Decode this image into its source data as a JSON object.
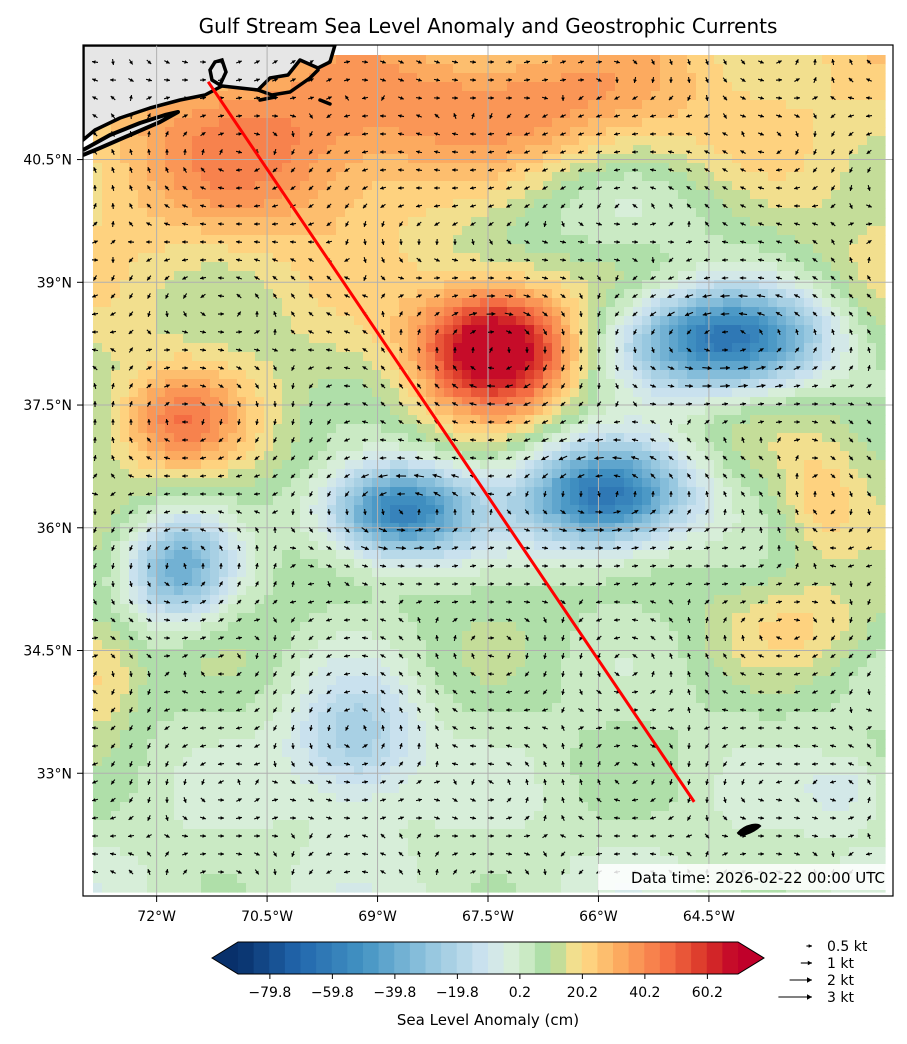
{
  "chart_data": {
    "type": "heatmap",
    "title": "Gulf Stream Sea Level Anomaly and Geostrophic Currents",
    "x_ticks": [
      {
        "lon": -72.0,
        "label": "72°W"
      },
      {
        "lon": -70.5,
        "label": "70.5°W"
      },
      {
        "lon": -69.0,
        "label": "69°W"
      },
      {
        "lon": -67.5,
        "label": "67.5°W"
      },
      {
        "lon": -66.0,
        "label": "66°W"
      },
      {
        "lon": -64.5,
        "label": "64.5°W"
      }
    ],
    "y_ticks": [
      {
        "lat": 40.5,
        "label": "40.5°N"
      },
      {
        "lat": 39.0,
        "label": "39°N"
      },
      {
        "lat": 37.5,
        "label": "37.5°N"
      },
      {
        "lat": 36.0,
        "label": "36°N"
      },
      {
        "lat": 34.5,
        "label": "34.5°N"
      },
      {
        "lat": 33.0,
        "label": "33°N"
      }
    ],
    "xlim": [
      -73.0,
      -62.0
    ],
    "ylim": [
      31.5,
      41.9
    ],
    "grid": true,
    "timestamp": "Data time: 2026-02-22 00:00 UTC",
    "colorbar": {
      "label": "Sea Level Anomaly (cm)",
      "range": [
        -90,
        70
      ],
      "ticks": [
        "−79.8",
        "−59.8",
        "−39.8",
        "−19.8",
        "0.2",
        "20.2",
        "40.2",
        "60.2"
      ],
      "tick_values": [
        -79.8,
        -59.8,
        -39.8,
        -19.8,
        0.2,
        20.2,
        40.2,
        60.2
      ]
    },
    "eddies": [
      {
        "lon": -67.4,
        "lat": 38.2,
        "amp": 70,
        "sx": 0.7,
        "sy": 0.5
      },
      {
        "lon": -64.3,
        "lat": 38.3,
        "amp": -75,
        "sx": 1.0,
        "sy": 0.45
      },
      {
        "lon": -68.7,
        "lat": 36.2,
        "amp": -70,
        "sx": 0.7,
        "sy": 0.4
      },
      {
        "lon": -65.9,
        "lat": 36.4,
        "amp": -75,
        "sx": 0.8,
        "sy": 0.45
      },
      {
        "lon": -71.7,
        "lat": 35.5,
        "amp": -45,
        "sx": 0.5,
        "sy": 0.45
      },
      {
        "lon": -71.7,
        "lat": 37.3,
        "amp": 30,
        "sx": 0.6,
        "sy": 0.45
      },
      {
        "lon": -69.3,
        "lat": 33.4,
        "amp": -30,
        "sx": 0.6,
        "sy": 0.55
      },
      {
        "lon": -70.5,
        "lat": 40.6,
        "amp": 22,
        "sx": 1.6,
        "sy": 0.8
      },
      {
        "lon": -67.0,
        "lat": 41.2,
        "amp": 18,
        "sx": 1.5,
        "sy": 0.5
      },
      {
        "lon": -63.0,
        "lat": 36.3,
        "amp": 15,
        "sx": 0.4,
        "sy": 0.5
      },
      {
        "lon": -63.2,
        "lat": 34.8,
        "amp": 12,
        "sx": 0.8,
        "sy": 0.4
      },
      {
        "lon": -72.8,
        "lat": 34.2,
        "amp": 20,
        "sx": 0.4,
        "sy": 0.5
      },
      {
        "lon": -65.7,
        "lat": 39.8,
        "amp": -15,
        "sx": 1.5,
        "sy": 0.5
      },
      {
        "lon": -62.6,
        "lat": 32.8,
        "amp": -12,
        "sx": 0.4,
        "sy": 0.3
      }
    ],
    "baseline_slope": {
      "base": 5,
      "per_degree_lat": 2
    },
    "track": {
      "label": "",
      "points": [
        {
          "lon": -71.3,
          "lat": 41.45
        },
        {
          "lon": -64.7,
          "lat": 32.65
        }
      ]
    },
    "quiver_key": {
      "items": [
        {
          "kt": 0.5,
          "label": "0.5 kt"
        },
        {
          "kt": 1,
          "label": "1 kt"
        },
        {
          "kt": 2,
          "label": "2 kt"
        },
        {
          "kt": 3,
          "label": "3 kt"
        }
      ]
    }
  }
}
